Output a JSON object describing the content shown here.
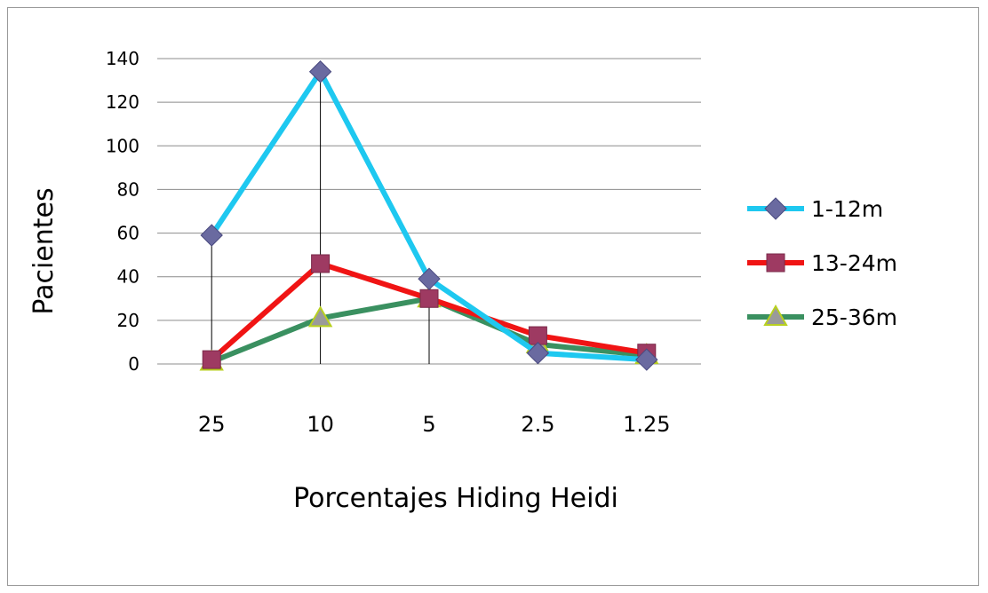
{
  "chart_data": {
    "type": "line",
    "title": "",
    "xlabel": "Porcentajes Hiding Heidi",
    "ylabel": "Pacientes",
    "categories": [
      "25",
      "10",
      "5",
      "2.5",
      "1.25"
    ],
    "ylim": [
      0,
      140
    ],
    "yticks": [
      0,
      20,
      40,
      60,
      80,
      100,
      120,
      140
    ],
    "grid": true,
    "legend_position": "right",
    "drop_lines": true,
    "series": [
      {
        "name": "1-12m",
        "values": [
          59,
          134,
          39,
          5,
          2
        ],
        "color": "#1ec8f0",
        "marker": "diamond",
        "marker_color": "#6a6aa0"
      },
      {
        "name": "13-24m",
        "values": [
          2,
          46,
          30,
          13,
          5
        ],
        "color": "#f01414",
        "marker": "square",
        "marker_color": "#9e3a62"
      },
      {
        "name": "25-36m",
        "values": [
          1,
          21,
          30,
          9,
          4
        ],
        "color": "#3a9060",
        "marker": "triangle",
        "marker_color": "#9a9a9a"
      }
    ]
  }
}
